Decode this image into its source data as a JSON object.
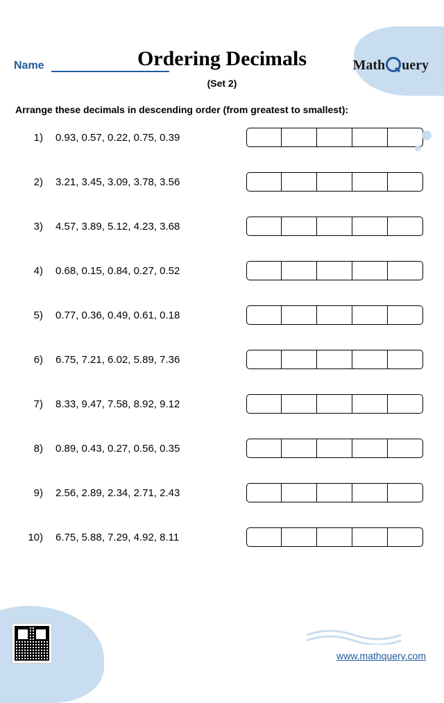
{
  "header": {
    "name_label": "Name",
    "logo_left": "Math",
    "logo_right": "uery"
  },
  "title": "Ordering Decimals",
  "subtitle": "(Set 2)",
  "instructions": "Arrange these decimals in descending order (from greatest to smallest):",
  "boxes_per_row": 5,
  "problems": [
    {
      "n": "1)",
      "text": "0.93, 0.57, 0.22, 0.75, 0.39"
    },
    {
      "n": "2)",
      "text": "3.21, 3.45, 3.09, 3.78, 3.56"
    },
    {
      "n": "3)",
      "text": "4.57, 3.89, 5.12, 4.23, 3.68"
    },
    {
      "n": "4)",
      "text": "0.68, 0.15, 0.84, 0.27, 0.52"
    },
    {
      "n": "5)",
      "text": "0.77, 0.36, 0.49, 0.61, 0.18"
    },
    {
      "n": "6)",
      "text": "6.75, 7.21, 6.02, 5.89, 7.36"
    },
    {
      "n": "7)",
      "text": "8.33, 9.47, 7.58, 8.92, 9.12"
    },
    {
      "n": "8)",
      "text": "0.89, 0.43, 0.27, 0.56, 0.35"
    },
    {
      "n": "9)",
      "text": "2.56, 2.89, 2.34, 2.71, 2.43"
    },
    {
      "n": "10)",
      "text": "6.75, 5.88, 7.29, 4.92, 8.11"
    }
  ],
  "footer": {
    "url": "www.mathquery.com"
  },
  "colors": {
    "accent": "#205a9c",
    "shape_bg": "#c9ddf0",
    "border": "#000000"
  }
}
